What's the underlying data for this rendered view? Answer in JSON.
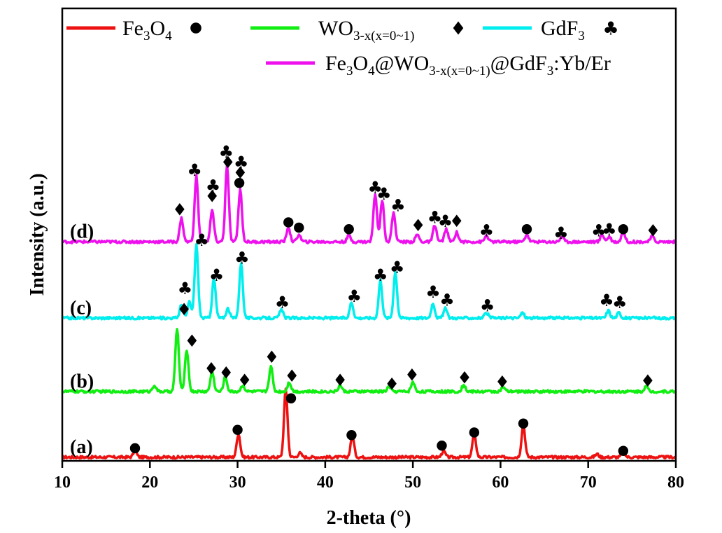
{
  "chart_data": {
    "type": "line",
    "xlabel": "2-theta (°)",
    "ylabel": "Intensity (a.u.)",
    "xlim": [
      10,
      80
    ],
    "xticks": [
      10,
      20,
      30,
      40,
      50,
      60,
      70,
      80
    ],
    "grid": false,
    "legend_placement": "top",
    "legend": [
      {
        "base": "Fe",
        "s1": "3",
        "mid": "O",
        "s2": "4",
        "color": "#ee1111",
        "marker": "circle"
      },
      {
        "base": "WO",
        "s1": "3-x(x=0~1)",
        "color": "#11ee11",
        "marker": "diamond"
      },
      {
        "base": "GdF",
        "s1": "3",
        "color": "#00eeee",
        "marker": "club"
      },
      {
        "composite": [
          "Fe",
          "3",
          "O",
          "4",
          "@WO",
          "3-x(x=0~1)",
          "@GdF",
          "3",
          ":Yb/Er"
        ],
        "color": "#ee11ee"
      }
    ],
    "series": [
      {
        "label": "(a)",
        "color": "#ee1111",
        "baseline": 0,
        "peaks": [
          [
            18.3,
            12
          ],
          [
            30.1,
            45
          ],
          [
            35.5,
            130
          ],
          [
            37.1,
            8
          ],
          [
            43.1,
            40
          ],
          [
            53.5,
            12
          ],
          [
            57.0,
            45
          ],
          [
            62.6,
            62
          ],
          [
            71.0,
            6
          ],
          [
            74.0,
            10
          ]
        ],
        "markers": [
          {
            "x": 18.3,
            "y": 20,
            "m": "circle"
          },
          {
            "x": 30.0,
            "y": 55,
            "m": "circle"
          },
          {
            "x": 36.1,
            "y": 115,
            "m": "circle"
          },
          {
            "x": 43.0,
            "y": 45,
            "m": "circle"
          },
          {
            "x": 53.3,
            "y": 25,
            "m": "circle"
          },
          {
            "x": 57.0,
            "y": 50,
            "m": "circle"
          },
          {
            "x": 62.6,
            "y": 67,
            "m": "circle"
          },
          {
            "x": 74.0,
            "y": 15,
            "m": "circle"
          }
        ]
      },
      {
        "label": "(b)",
        "color": "#11ee11",
        "baseline": 125,
        "peaks": [
          [
            20.5,
            12
          ],
          [
            23.1,
            120
          ],
          [
            24.2,
            80
          ],
          [
            27.1,
            38
          ],
          [
            28.6,
            28
          ],
          [
            30.6,
            12
          ],
          [
            33.8,
            48
          ],
          [
            35.9,
            18
          ],
          [
            41.7,
            12
          ],
          [
            47.3,
            10
          ],
          [
            50.0,
            18
          ],
          [
            55.8,
            12
          ],
          [
            60.3,
            8
          ],
          [
            76.6,
            10
          ]
        ],
        "markers": [
          {
            "x": 23.9,
            "y": 285,
            "m": "diamond"
          },
          {
            "x": 24.8,
            "y": 225,
            "m": "diamond"
          },
          {
            "x": 27.0,
            "y": 172,
            "m": "diamond"
          },
          {
            "x": 28.7,
            "y": 164,
            "m": "diamond"
          },
          {
            "x": 30.8,
            "y": 150,
            "m": "diamond"
          },
          {
            "x": 33.9,
            "y": 194,
            "m": "diamond"
          },
          {
            "x": 36.2,
            "y": 158,
            "m": "diamond"
          },
          {
            "x": 41.7,
            "y": 150,
            "m": "diamond"
          },
          {
            "x": 47.6,
            "y": 143,
            "m": "diamond"
          },
          {
            "x": 49.9,
            "y": 160,
            "m": "diamond"
          },
          {
            "x": 55.9,
            "y": 155,
            "m": "diamond"
          },
          {
            "x": 60.2,
            "y": 147,
            "m": "diamond"
          },
          {
            "x": 76.8,
            "y": 149,
            "m": "diamond"
          }
        ]
      },
      {
        "label": "(c)",
        "color": "#00eeee",
        "baseline": 265,
        "peaks": [
          [
            23.6,
            25
          ],
          [
            24.5,
            30
          ],
          [
            25.3,
            140
          ],
          [
            27.3,
            75
          ],
          [
            28.9,
            18
          ],
          [
            30.4,
            105
          ],
          [
            35.0,
            16
          ],
          [
            43.0,
            30
          ],
          [
            46.3,
            72
          ],
          [
            48.0,
            88
          ],
          [
            52.3,
            28
          ],
          [
            53.7,
            18
          ],
          [
            58.4,
            10
          ],
          [
            62.5,
            10
          ],
          [
            72.3,
            14
          ],
          [
            73.5,
            10
          ]
        ],
        "markers": [
          {
            "x": 24.0,
            "y": 325,
            "m": "club"
          },
          {
            "x": 25.9,
            "y": 417,
            "m": "club"
          },
          {
            "x": 27.6,
            "y": 350,
            "m": "club"
          },
          {
            "x": 30.5,
            "y": 383,
            "m": "club"
          },
          {
            "x": 35.1,
            "y": 298,
            "m": "club"
          },
          {
            "x": 43.3,
            "y": 310,
            "m": "club"
          },
          {
            "x": 46.3,
            "y": 350,
            "m": "club"
          },
          {
            "x": 48.2,
            "y": 365,
            "m": "club"
          },
          {
            "x": 52.3,
            "y": 318,
            "m": "club"
          },
          {
            "x": 53.9,
            "y": 303,
            "m": "club"
          },
          {
            "x": 58.5,
            "y": 292,
            "m": "club"
          },
          {
            "x": 72.1,
            "y": 302,
            "m": "club"
          },
          {
            "x": 73.6,
            "y": 298,
            "m": "club"
          }
        ]
      },
      {
        "label": "(d)",
        "color": "#ee11ee",
        "baseline": 410,
        "peaks": [
          [
            23.6,
            45
          ],
          [
            25.3,
            125
          ],
          [
            27.1,
            60
          ],
          [
            28.8,
            145
          ],
          [
            30.3,
            100
          ],
          [
            35.8,
            28
          ],
          [
            37.0,
            14
          ],
          [
            42.7,
            12
          ],
          [
            45.7,
            92
          ],
          [
            46.5,
            80
          ],
          [
            47.8,
            55
          ],
          [
            50.5,
            14
          ],
          [
            52.5,
            32
          ],
          [
            53.8,
            24
          ],
          [
            55.0,
            18
          ],
          [
            58.4,
            12
          ],
          [
            63.0,
            14
          ],
          [
            67.0,
            10
          ],
          [
            71.6,
            14
          ],
          [
            72.4,
            10
          ],
          [
            74.0,
            20
          ],
          [
            77.3,
            10
          ]
        ],
        "markers": [
          {
            "x": 23.4,
            "y": 475,
            "m": "diamond"
          },
          {
            "x": 25.1,
            "y": 550,
            "m": "club"
          },
          {
            "x": 27.1,
            "y": 500,
            "m": "diamond"
          },
          {
            "x": 27.2,
            "y": 520,
            "m": "club"
          },
          {
            "x": 28.9,
            "y": 565,
            "m": "diamond"
          },
          {
            "x": 28.7,
            "y": 585,
            "m": "club"
          },
          {
            "x": 30.2,
            "y": 525,
            "m": "circle"
          },
          {
            "x": 30.3,
            "y": 545,
            "m": "diamond"
          },
          {
            "x": 30.4,
            "y": 565,
            "m": "club"
          },
          {
            "x": 35.8,
            "y": 450,
            "m": "circle"
          },
          {
            "x": 37.0,
            "y": 440,
            "m": "circle"
          },
          {
            "x": 42.7,
            "y": 437,
            "m": "circle"
          },
          {
            "x": 45.7,
            "y": 517,
            "m": "club"
          },
          {
            "x": 46.7,
            "y": 505,
            "m": "club"
          },
          {
            "x": 48.3,
            "y": 483,
            "m": "club"
          },
          {
            "x": 50.6,
            "y": 445,
            "m": "diamond"
          },
          {
            "x": 52.5,
            "y": 460,
            "m": "club"
          },
          {
            "x": 53.7,
            "y": 453,
            "m": "club"
          },
          {
            "x": 55.0,
            "y": 453,
            "m": "diamond"
          },
          {
            "x": 58.4,
            "y": 435,
            "m": "club"
          },
          {
            "x": 63.0,
            "y": 437,
            "m": "circle"
          },
          {
            "x": 66.9,
            "y": 430,
            "m": "club"
          },
          {
            "x": 71.2,
            "y": 435,
            "m": "club"
          },
          {
            "x": 72.4,
            "y": 437,
            "m": "club"
          },
          {
            "x": 74.0,
            "y": 437,
            "m": "circle"
          },
          {
            "x": 77.4,
            "y": 435,
            "m": "diamond"
          }
        ]
      }
    ]
  }
}
